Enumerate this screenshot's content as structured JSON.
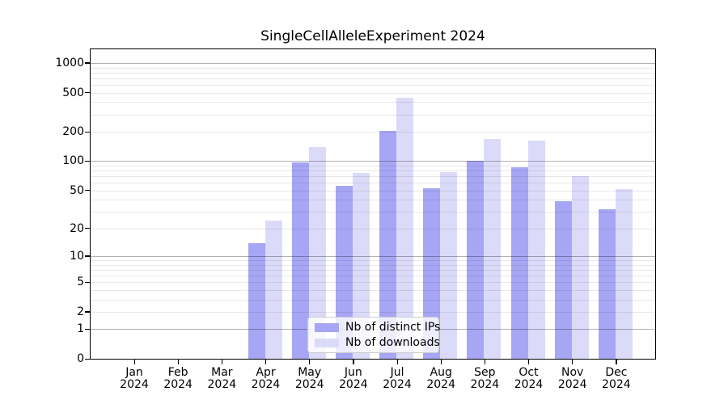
{
  "title": "SingleCellAlleleExperiment 2024",
  "legend": {
    "items": [
      {
        "label": "Nb of distinct IPs",
        "color": "#a6a6f4"
      },
      {
        "label": "Nb of downloads",
        "color": "#dbdbf9"
      }
    ]
  },
  "chart_data": {
    "type": "bar",
    "title": "SingleCellAlleleExperiment 2024",
    "categories": [
      "Jan 2024",
      "Feb 2024",
      "Mar 2024",
      "Apr 2024",
      "May 2024",
      "Jun 2024",
      "Jul 2024",
      "Aug 2024",
      "Sep 2024",
      "Oct 2024",
      "Nov 2024",
      "Dec 2024"
    ],
    "series": [
      {
        "name": "Nb of distinct IPs",
        "color": "#a6a6f4",
        "values": [
          0,
          0,
          0,
          14,
          97,
          56,
          205,
          53,
          100,
          86,
          39,
          32
        ]
      },
      {
        "name": "Nb of downloads",
        "color": "#dbdbf9",
        "values": [
          0,
          0,
          0,
          24,
          140,
          76,
          445,
          77,
          170,
          162,
          70,
          52
        ]
      }
    ],
    "xlabel": "",
    "ylabel": "",
    "yscale": "log(value+1)",
    "yticks": [
      0,
      1,
      2,
      5,
      10,
      20,
      50,
      100,
      200,
      500,
      1000
    ],
    "ylim": [
      0,
      1377
    ],
    "grid": true,
    "legend_position": "inside-bottom-center",
    "colors": {
      "bar_dark": "#a6a6f4",
      "bar_light": "#dbdbf9",
      "grid_major": "#b5b5b5",
      "grid_minor": "#e9e9e9",
      "axis": "#000000",
      "background": "#ffffff"
    }
  }
}
